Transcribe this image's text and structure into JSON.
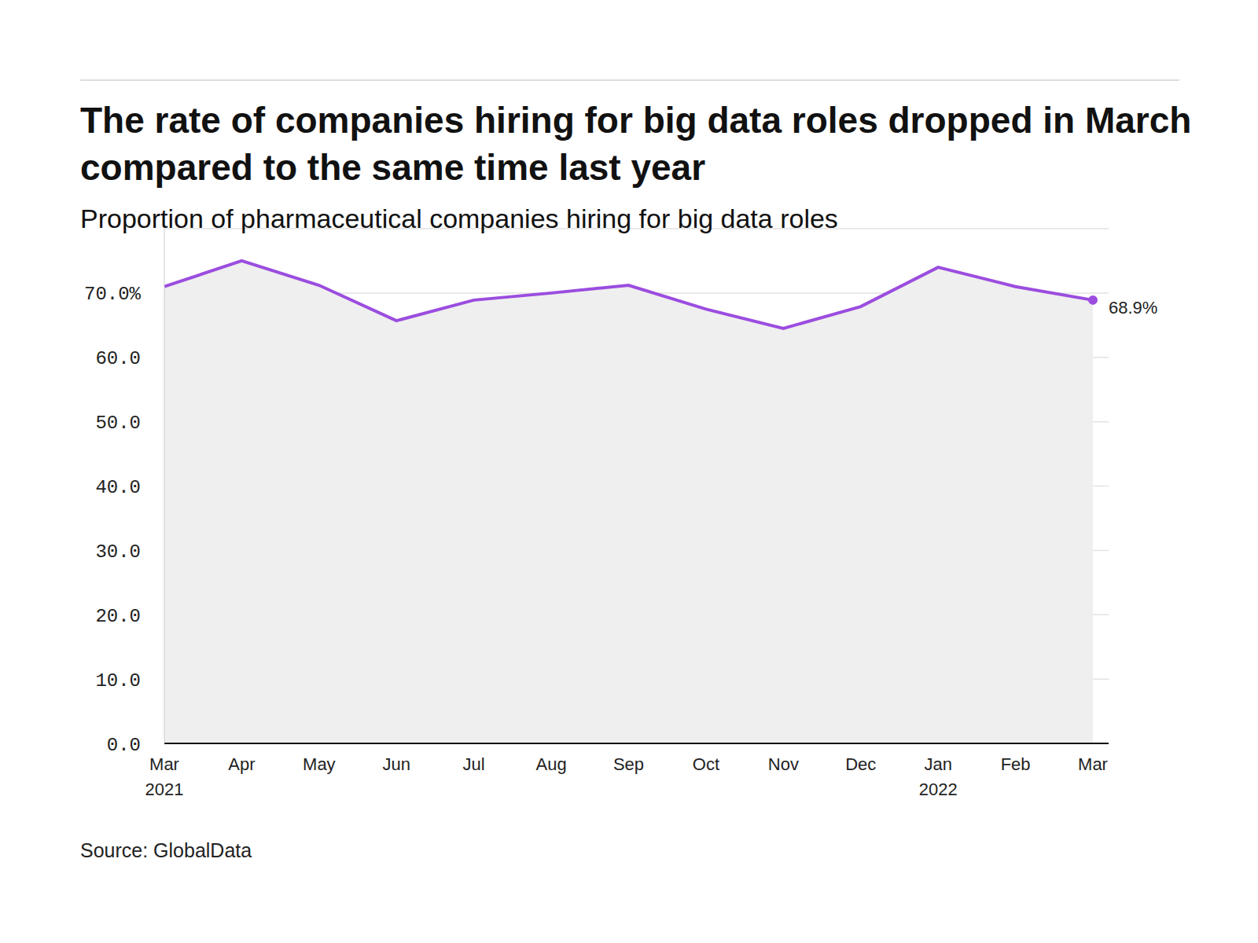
{
  "chart_data": {
    "type": "line",
    "title": "The rate of companies hiring for big data roles dropped in March compared to the same time last year",
    "subtitle": "Proportion of pharmaceutical companies hiring for big data roles",
    "source": "Source: GlobalData",
    "categories": [
      "Mar 2021",
      "Apr",
      "May",
      "Jun",
      "Jul",
      "Aug",
      "Sep",
      "Oct",
      "Nov",
      "Dec",
      "Jan 2022",
      "Feb",
      "Mar"
    ],
    "values": [
      71.0,
      75.0,
      71.2,
      65.7,
      68.9,
      70.0,
      71.2,
      67.5,
      64.5,
      67.9,
      74.0,
      71.0,
      68.9
    ],
    "value_labels": [
      null,
      null,
      null,
      null,
      null,
      null,
      null,
      null,
      null,
      null,
      null,
      null,
      "68.9%"
    ],
    "color": "#9b4ddf",
    "ylim": [
      0,
      80
    ],
    "yticks": [
      {
        "value": 0,
        "label": "0.0"
      },
      {
        "value": 10,
        "label": "10.0"
      },
      {
        "value": 20,
        "label": "20.0"
      },
      {
        "value": 30,
        "label": "30.0"
      },
      {
        "value": 40,
        "label": "40.0"
      },
      {
        "value": 50,
        "label": "50.0"
      },
      {
        "value": 60,
        "label": "60.0"
      },
      {
        "value": 70,
        "label": "70.0%"
      }
    ],
    "grid": true
  }
}
